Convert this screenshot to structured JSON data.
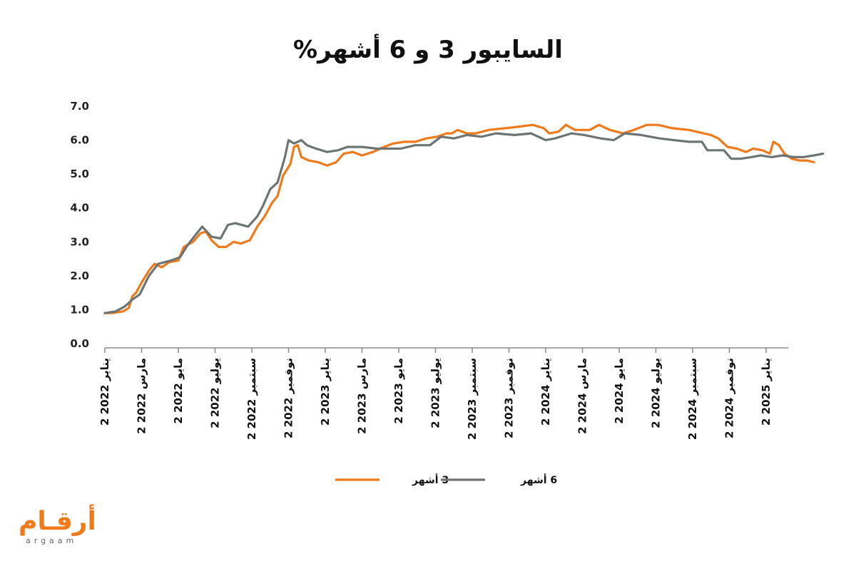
{
  "chart_data": {
    "type": "line",
    "title": "السايبور 3 و 6 أشهر%",
    "xlabel": "",
    "ylabel": "",
    "ylim": [
      0,
      7
    ],
    "y_ticks": [
      "0.0",
      "1.0",
      "2.0",
      "3.0",
      "4.0",
      "5.0",
      "6.0",
      "7.0"
    ],
    "grid": false,
    "legend_position": "bottom",
    "x_tick_labels": [
      "2 يناير 2022",
      "2 مارس 2022",
      "2 مايو 2022",
      "2 يوليو 2022",
      "2 سبتمبر 2022",
      "2 نوفمبر 2022",
      "2 يناير 2023",
      "2 مارس 2023",
      "2 مايو 2023",
      "2 يوليو 2023",
      "2 سبتمبر 2023",
      "2 نوفمبر 2023",
      "2 يناير 2024",
      "2 مارس 2024",
      "2 مايو 2024",
      "2 يوليو 2024",
      "2 سبتمبر 2024",
      "2 نوفمبر 2024",
      "2 يناير 2025"
    ],
    "series": [
      {
        "name": "3 أشهر",
        "color": "#f07a1a",
        "points": [
          [
            0,
            0.9
          ],
          [
            0.2,
            0.9
          ],
          [
            0.5,
            0.95
          ],
          [
            0.65,
            1.05
          ],
          [
            0.75,
            1.4
          ],
          [
            0.85,
            1.5
          ],
          [
            1.0,
            1.8
          ],
          [
            1.2,
            2.15
          ],
          [
            1.35,
            2.35
          ],
          [
            1.55,
            2.25
          ],
          [
            1.75,
            2.4
          ],
          [
            2.0,
            2.45
          ],
          [
            2.15,
            2.85
          ],
          [
            2.4,
            3.0
          ],
          [
            2.6,
            3.25
          ],
          [
            2.75,
            3.3
          ],
          [
            2.9,
            3.05
          ],
          [
            3.1,
            2.85
          ],
          [
            3.3,
            2.85
          ],
          [
            3.5,
            3.0
          ],
          [
            3.7,
            2.95
          ],
          [
            3.95,
            3.05
          ],
          [
            4.15,
            3.45
          ],
          [
            4.35,
            3.75
          ],
          [
            4.55,
            4.15
          ],
          [
            4.7,
            4.35
          ],
          [
            4.85,
            4.95
          ],
          [
            5.05,
            5.3
          ],
          [
            5.15,
            5.8
          ],
          [
            5.25,
            5.85
          ],
          [
            5.35,
            5.5
          ],
          [
            5.55,
            5.4
          ],
          [
            5.8,
            5.35
          ],
          [
            6.05,
            5.25
          ],
          [
            6.3,
            5.35
          ],
          [
            6.5,
            5.6
          ],
          [
            6.75,
            5.65
          ],
          [
            7.0,
            5.55
          ],
          [
            7.3,
            5.65
          ],
          [
            7.6,
            5.8
          ],
          [
            7.85,
            5.9
          ],
          [
            8.15,
            5.95
          ],
          [
            8.45,
            5.95
          ],
          [
            8.75,
            6.05
          ],
          [
            9.05,
            6.1
          ],
          [
            9.3,
            6.2
          ],
          [
            9.45,
            6.2
          ],
          [
            9.6,
            6.3
          ],
          [
            9.85,
            6.2
          ],
          [
            10.1,
            6.2
          ],
          [
            10.45,
            6.3
          ],
          [
            10.9,
            6.35
          ],
          [
            11.3,
            6.4
          ],
          [
            11.65,
            6.45
          ],
          [
            11.95,
            6.35
          ],
          [
            12.1,
            6.2
          ],
          [
            12.35,
            6.25
          ],
          [
            12.55,
            6.45
          ],
          [
            12.8,
            6.3
          ],
          [
            13.2,
            6.3
          ],
          [
            13.45,
            6.45
          ],
          [
            13.75,
            6.3
          ],
          [
            14.1,
            6.2
          ],
          [
            14.4,
            6.3
          ],
          [
            14.75,
            6.45
          ],
          [
            15.05,
            6.45
          ],
          [
            15.45,
            6.35
          ],
          [
            15.9,
            6.3
          ],
          [
            16.1,
            6.25
          ],
          [
            16.5,
            6.15
          ],
          [
            16.7,
            6.05
          ],
          [
            16.95,
            5.8
          ],
          [
            17.2,
            5.75
          ],
          [
            17.45,
            5.65
          ],
          [
            17.65,
            5.75
          ],
          [
            17.9,
            5.7
          ],
          [
            18.1,
            5.6
          ],
          [
            18.2,
            5.95
          ],
          [
            18.35,
            5.85
          ],
          [
            18.5,
            5.6
          ],
          [
            18.7,
            5.45
          ],
          [
            18.9,
            5.4
          ],
          [
            19.1,
            5.4
          ],
          [
            19.3,
            5.35
          ]
        ]
      },
      {
        "name": "6 أشهر",
        "color": "#6d7574",
        "points": [
          [
            0,
            0.9
          ],
          [
            0.3,
            0.95
          ],
          [
            0.55,
            1.1
          ],
          [
            0.75,
            1.3
          ],
          [
            0.95,
            1.45
          ],
          [
            1.2,
            2.0
          ],
          [
            1.45,
            2.35
          ],
          [
            1.8,
            2.45
          ],
          [
            2.05,
            2.55
          ],
          [
            2.25,
            2.9
          ],
          [
            2.5,
            3.25
          ],
          [
            2.65,
            3.45
          ],
          [
            2.9,
            3.15
          ],
          [
            3.15,
            3.1
          ],
          [
            3.35,
            3.5
          ],
          [
            3.55,
            3.55
          ],
          [
            3.9,
            3.45
          ],
          [
            4.15,
            3.75
          ],
          [
            4.3,
            4.05
          ],
          [
            4.5,
            4.55
          ],
          [
            4.7,
            4.75
          ],
          [
            4.9,
            5.5
          ],
          [
            5.0,
            6.0
          ],
          [
            5.15,
            5.9
          ],
          [
            5.35,
            6.0
          ],
          [
            5.5,
            5.85
          ],
          [
            5.75,
            5.75
          ],
          [
            6.05,
            5.65
          ],
          [
            6.35,
            5.7
          ],
          [
            6.6,
            5.8
          ],
          [
            7.0,
            5.8
          ],
          [
            7.4,
            5.75
          ],
          [
            7.65,
            5.75
          ],
          [
            8.05,
            5.75
          ],
          [
            8.45,
            5.85
          ],
          [
            8.85,
            5.85
          ],
          [
            9.15,
            6.1
          ],
          [
            9.5,
            6.05
          ],
          [
            9.85,
            6.15
          ],
          [
            10.25,
            6.1
          ],
          [
            10.65,
            6.2
          ],
          [
            11.15,
            6.15
          ],
          [
            11.6,
            6.2
          ],
          [
            12.0,
            6.0
          ],
          [
            12.25,
            6.05
          ],
          [
            12.7,
            6.2
          ],
          [
            13.05,
            6.15
          ],
          [
            13.5,
            6.05
          ],
          [
            13.85,
            6.0
          ],
          [
            14.15,
            6.2
          ],
          [
            14.6,
            6.15
          ],
          [
            15.1,
            6.05
          ],
          [
            15.5,
            6.0
          ],
          [
            15.9,
            5.95
          ],
          [
            16.25,
            5.95
          ],
          [
            16.4,
            5.7
          ],
          [
            16.85,
            5.7
          ],
          [
            17.05,
            5.45
          ],
          [
            17.3,
            5.45
          ],
          [
            17.6,
            5.5
          ],
          [
            17.85,
            5.55
          ],
          [
            18.15,
            5.5
          ],
          [
            18.45,
            5.55
          ],
          [
            18.75,
            5.5
          ],
          [
            19.0,
            5.5
          ],
          [
            19.3,
            5.55
          ],
          [
            19.55,
            5.6
          ]
        ]
      }
    ]
  },
  "legend": {
    "items": [
      {
        "label": "3 أشهر",
        "color": "#f07a1a"
      },
      {
        "label": "6 أشهر",
        "color": "#6d7574"
      }
    ]
  },
  "logo": {
    "arabic": "أرقـام",
    "latin": "argaam"
  }
}
